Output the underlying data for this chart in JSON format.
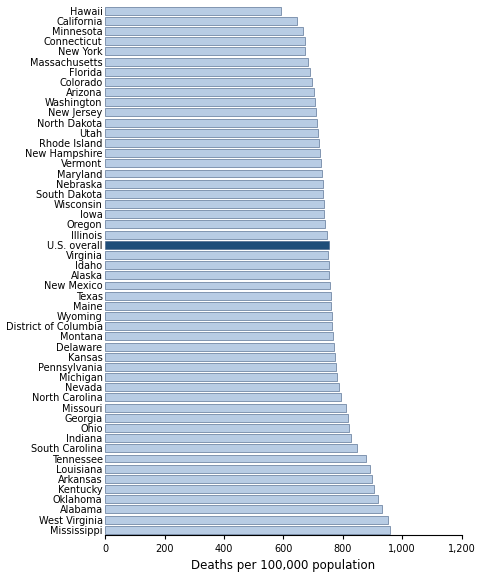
{
  "states": [
    "Hawaii",
    "California",
    "Minnesota",
    "Connecticut",
    "New York",
    "Massachusetts",
    "Florida",
    "Colorado",
    "Arizona",
    "Washington",
    "New Jersey",
    "North Dakota",
    "Utah",
    "Rhode Island",
    "New Hampshire",
    "Vermont",
    "Maryland",
    "Nebraska",
    "South Dakota",
    "Wisconsin",
    "Iowa",
    "Oregon",
    "Illinois",
    "U.S. overall",
    "Virginia",
    "Idaho",
    "Alaska",
    "New Mexico",
    "Texas",
    "Maine",
    "Wyoming",
    "District of Columbia",
    "Montana",
    "Delaware",
    "Kansas",
    "Pennsylvania",
    "Michigan",
    "Nevada",
    "North Carolina",
    "Missouri",
    "Georgia",
    "Ohio",
    "Indiana",
    "South Carolina",
    "Tennessee",
    "Louisiana",
    "Arkansas",
    "Kentucky",
    "Oklahoma",
    "Alabama",
    "West Virginia",
    "Mississippi"
  ],
  "values": [
    591,
    645,
    667,
    672,
    674,
    682,
    690,
    697,
    702,
    706,
    710,
    713,
    717,
    720,
    723,
    726,
    729,
    732,
    734,
    736,
    738,
    741,
    748,
    755,
    751,
    753,
    755,
    757,
    759,
    761,
    763,
    765,
    768,
    770,
    773,
    778,
    782,
    787,
    793,
    812,
    818,
    822,
    828,
    847,
    878,
    893,
    897,
    905,
    917,
    933,
    952,
    960
  ],
  "bar_color": "#b8cce4",
  "bar_edge_color": "#3d5a80",
  "highlight_color": "#1f4e79",
  "highlight_state": "U.S. overall",
  "xlabel": "Deaths per 100,000 population",
  "xlim": [
    0,
    1200
  ],
  "xticks": [
    0,
    200,
    400,
    600,
    800,
    1000,
    1200
  ],
  "xtick_labels": [
    "0",
    "200",
    "400",
    "600",
    "800",
    "1,000",
    "1,200"
  ],
  "label_fontsize": 7.0,
  "xlabel_fontsize": 8.5
}
